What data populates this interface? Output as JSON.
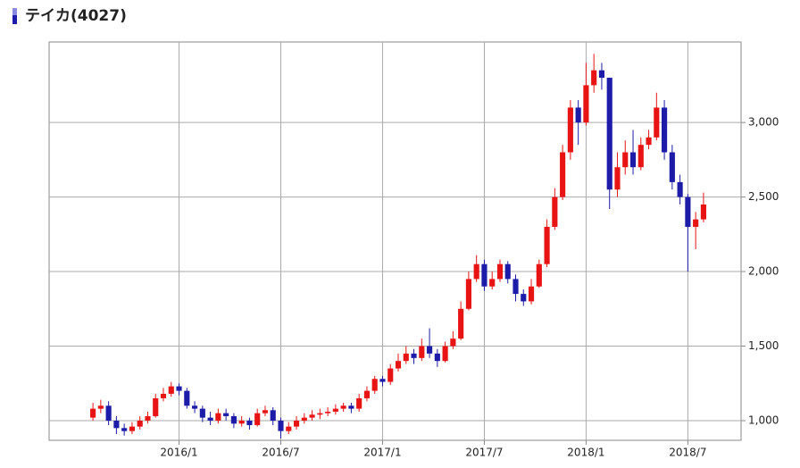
{
  "chart_data": {
    "type": "candlestick",
    "title": "テイカ(4027)",
    "up_color": "#e81414",
    "down_color": "#1c1ca8",
    "grid": true,
    "categories": [
      null,
      null,
      null,
      null,
      null,
      null,
      null,
      null,
      null,
      null,
      null,
      "2016/1",
      null,
      null,
      null,
      null,
      null,
      null,
      null,
      null,
      null,
      null,
      null,
      null,
      "2016/7",
      null,
      null,
      null,
      null,
      null,
      null,
      null,
      null,
      null,
      null,
      null,
      null,
      "2017/1",
      null,
      null,
      null,
      null,
      null,
      null,
      null,
      null,
      null,
      null,
      null,
      null,
      "2017/7",
      null,
      null,
      null,
      null,
      null,
      null,
      null,
      null,
      null,
      null,
      null,
      null,
      "2018/1",
      null,
      null,
      null,
      null,
      null,
      null,
      null,
      null,
      null,
      null,
      null,
      null,
      "2018/7",
      null,
      null
    ],
    "open": [
      1020,
      1080,
      1100,
      1000,
      950,
      930,
      960,
      1000,
      1030,
      1150,
      1180,
      1230,
      1200,
      1100,
      1080,
      1020,
      1000,
      1050,
      1030,
      980,
      1000,
      970,
      1050,
      1070,
      1000,
      930,
      960,
      1000,
      1020,
      1040,
      1050,
      1060,
      1080,
      1100,
      1080,
      1150,
      1200,
      1280,
      1260,
      1350,
      1400,
      1450,
      1420,
      1500,
      1450,
      1400,
      1500,
      1550,
      1750,
      1950,
      2050,
      1900,
      1950,
      2050,
      1950,
      1850,
      1800,
      1900,
      2050,
      2300,
      2500,
      2800,
      3100,
      3000,
      3250,
      3350,
      3300,
      2550,
      2700,
      2800,
      2700,
      2850,
      2900,
      3100,
      2800,
      2600,
      2500,
      2300,
      2350
    ],
    "high": [
      1120,
      1140,
      1130,
      1030,
      980,
      990,
      1030,
      1060,
      1180,
      1220,
      1260,
      1250,
      1220,
      1130,
      1100,
      1060,
      1080,
      1080,
      1050,
      1030,
      1020,
      1080,
      1100,
      1090,
      1020,
      990,
      1030,
      1050,
      1070,
      1080,
      1090,
      1110,
      1120,
      1120,
      1180,
      1230,
      1300,
      1300,
      1380,
      1450,
      1500,
      1480,
      1550,
      1620,
      1480,
      1530,
      1600,
      1800,
      2000,
      2110,
      2080,
      2000,
      2080,
      2070,
      1980,
      1880,
      1950,
      2080,
      2350,
      2560,
      2850,
      3150,
      3150,
      3400,
      3460,
      3400,
      3300,
      2800,
      2880,
      2950,
      2900,
      2950,
      3200,
      3150,
      2850,
      2650,
      2520,
      2400,
      2530
    ],
    "low": [
      1000,
      1050,
      970,
      910,
      900,
      910,
      940,
      980,
      1020,
      1130,
      1160,
      1170,
      1080,
      1050,
      990,
      970,
      980,
      1000,
      950,
      960,
      940,
      960,
      1030,
      970,
      880,
      910,
      940,
      980,
      1000,
      1010,
      1030,
      1040,
      1060,
      1050,
      1060,
      1130,
      1180,
      1230,
      1240,
      1330,
      1380,
      1380,
      1400,
      1420,
      1360,
      1390,
      1480,
      1540,
      1740,
      1930,
      1870,
      1880,
      1930,
      1920,
      1800,
      1770,
      1780,
      1890,
      2030,
      2280,
      2480,
      2750,
      2850,
      2980,
      3200,
      3220,
      2420,
      2500,
      2650,
      2650,
      2680,
      2820,
      2880,
      2750,
      2550,
      2450,
      2000,
      2150,
      2330
    ],
    "close": [
      1080,
      1100,
      1000,
      950,
      930,
      960,
      1000,
      1030,
      1150,
      1180,
      1230,
      1200,
      1100,
      1080,
      1020,
      1000,
      1050,
      1030,
      980,
      1000,
      970,
      1050,
      1070,
      1000,
      930,
      960,
      1000,
      1020,
      1040,
      1050,
      1060,
      1080,
      1100,
      1080,
      1150,
      1200,
      1280,
      1260,
      1350,
      1400,
      1450,
      1420,
      1500,
      1450,
      1400,
      1500,
      1550,
      1750,
      1950,
      2050,
      1900,
      1950,
      2050,
      1950,
      1850,
      1800,
      1900,
      2050,
      2300,
      2500,
      2800,
      3100,
      3000,
      3250,
      3350,
      3300,
      2550,
      2700,
      2800,
      2700,
      2850,
      2900,
      3100,
      2800,
      2600,
      2500,
      2300,
      2350,
      2450
    ],
    "ylim": [
      868,
      3540
    ],
    "yticks": [
      {
        "value": 1000,
        "label": "1,000"
      },
      {
        "value": 1500,
        "label": "1,500"
      },
      {
        "value": 2000,
        "label": "2,000"
      },
      {
        "value": 2500,
        "label": "2,500"
      },
      {
        "value": 3000,
        "label": "3,000"
      }
    ]
  }
}
